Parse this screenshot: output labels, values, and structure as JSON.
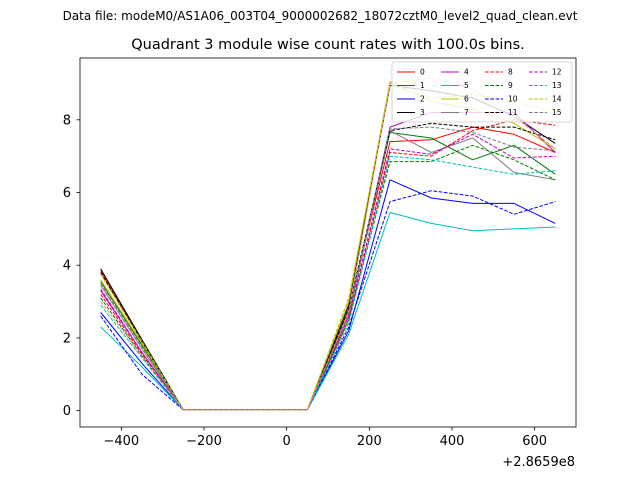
{
  "chart_data": {
    "type": "line",
    "suptitle": "Data file: modeM0/AS1A06_003T04_9000002682_18072cztM0_level2_quad_clean.evt",
    "title": "Quadrant 3 module wise count rates with 100.0s bins.",
    "xlabel": "",
    "ylabel": "",
    "x_offset_label": "+2.8659e8",
    "x": [
      -450,
      -350,
      -250,
      -150,
      -50,
      50,
      150,
      250,
      350,
      450,
      550,
      650
    ],
    "xlim": [
      -500,
      700
    ],
    "ylim": [
      -0.45,
      9.7
    ],
    "xticks": [
      -400,
      -200,
      0,
      200,
      400,
      600
    ],
    "xtick_labels": [
      "−400",
      "−200",
      "0",
      "200",
      "400",
      "600"
    ],
    "yticks": [
      0,
      2,
      4,
      6,
      8
    ],
    "ytick_labels": [
      "0",
      "2",
      "4",
      "6",
      "8"
    ],
    "grid": false,
    "legend_position": "upper right",
    "series": [
      {
        "name": "0",
        "color": "#ff0000",
        "dash": "solid",
        "values": [
          3.85,
          1.9,
          0.02,
          0.02,
          0.02,
          0.02,
          2.8,
          7.4,
          7.45,
          7.8,
          7.6,
          7.1
        ]
      },
      {
        "name": "1",
        "color": "#008000",
        "dash": "solid",
        "values": [
          3.55,
          1.8,
          0.02,
          0.02,
          0.02,
          0.02,
          2.7,
          7.65,
          7.5,
          6.9,
          7.3,
          6.5
        ]
      },
      {
        "name": "2",
        "color": "#0000ff",
        "dash": "solid",
        "values": [
          2.7,
          1.3,
          0.02,
          0.02,
          0.02,
          0.02,
          2.2,
          6.35,
          5.85,
          5.7,
          5.7,
          5.15
        ]
      },
      {
        "name": "3",
        "color": "#000000",
        "dash": "solid",
        "values": [
          3.9,
          1.95,
          0.02,
          0.02,
          0.02,
          0.02,
          2.9,
          8.95,
          8.8,
          8.6,
          8.1,
          7.35
        ]
      },
      {
        "name": "4",
        "color": "#bf00bf",
        "dash": "solid",
        "values": [
          3.3,
          1.6,
          0.02,
          0.02,
          0.02,
          0.02,
          2.6,
          7.8,
          8.2,
          8.2,
          8.2,
          7.1
        ]
      },
      {
        "name": "5",
        "color": "#00bfbf",
        "dash": "solid",
        "values": [
          2.3,
          1.2,
          0.02,
          0.02,
          0.02,
          0.02,
          2.1,
          5.45,
          5.15,
          4.95,
          5.0,
          5.05
        ]
      },
      {
        "name": "6",
        "color": "#bfbf00",
        "dash": "solid",
        "values": [
          3.6,
          1.85,
          0.02,
          0.02,
          0.02,
          0.02,
          3.0,
          9.05,
          8.5,
          8.3,
          7.9,
          7.2
        ]
      },
      {
        "name": "7",
        "color": "#7f7f7f",
        "dash": "solid",
        "values": [
          3.45,
          1.7,
          0.02,
          0.02,
          0.02,
          0.02,
          2.6,
          7.7,
          7.1,
          7.5,
          6.55,
          6.35
        ]
      },
      {
        "name": "8",
        "color": "#ff0000",
        "dash": "dashed",
        "values": [
          3.2,
          1.55,
          0.02,
          0.02,
          0.02,
          0.02,
          2.5,
          7.1,
          7.0,
          7.7,
          8.0,
          7.85
        ]
      },
      {
        "name": "9",
        "color": "#008000",
        "dash": "dashed",
        "values": [
          3.1,
          1.5,
          0.02,
          0.02,
          0.02,
          0.02,
          2.5,
          6.85,
          6.85,
          7.3,
          6.9,
          6.35
        ]
      },
      {
        "name": "10",
        "color": "#0000ff",
        "dash": "dashed",
        "values": [
          2.6,
          1.0,
          0.02,
          0.02,
          0.02,
          0.02,
          2.3,
          5.75,
          6.05,
          5.9,
          5.4,
          5.75
        ]
      },
      {
        "name": "11",
        "color": "#000000",
        "dash": "dashed",
        "values": [
          3.8,
          1.9,
          0.02,
          0.02,
          0.02,
          0.02,
          2.8,
          7.7,
          7.9,
          7.8,
          7.8,
          7.45
        ]
      },
      {
        "name": "12",
        "color": "#bf00bf",
        "dash": "dashed",
        "values": [
          3.35,
          1.6,
          0.02,
          0.02,
          0.02,
          0.02,
          2.6,
          7.2,
          7.05,
          7.6,
          6.95,
          7.0
        ]
      },
      {
        "name": "13",
        "color": "#00bfbf",
        "dash": "dashed",
        "values": [
          2.9,
          1.45,
          0.02,
          0.02,
          0.02,
          0.02,
          2.4,
          7.0,
          6.9,
          6.7,
          6.5,
          6.6
        ]
      },
      {
        "name": "14",
        "color": "#bfbf00",
        "dash": "dashed",
        "values": [
          3.75,
          1.9,
          0.02,
          0.02,
          0.02,
          0.02,
          3.1,
          8.95,
          8.6,
          8.7,
          8.5,
          8.2
        ]
      },
      {
        "name": "15",
        "color": "#7f7f7f",
        "dash": "dashed",
        "values": [
          3.5,
          1.75,
          0.02,
          0.02,
          0.02,
          0.02,
          2.7,
          7.75,
          7.8,
          7.65,
          7.25,
          7.15
        ]
      },
      {
        "name": "",
        "color": "#e9967a",
        "dash": "dashed",
        "values": [
          3.0,
          1.5,
          0.02,
          0.02,
          0.02,
          0.02,
          2.7,
          9.0,
          9.15,
          8.85,
          8.1,
          7.2
        ]
      }
    ]
  }
}
